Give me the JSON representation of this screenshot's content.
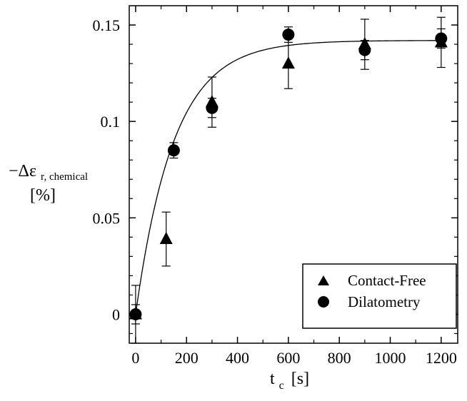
{
  "chart_data": {
    "type": "scatter",
    "xlabel": {
      "main": "t",
      "sub": "c",
      "unit": "[s]"
    },
    "ylabel": {
      "prefix": "−Δε",
      "sub": "r, chemical",
      "unit": "[%]"
    },
    "xlim": [
      -25,
      1265
    ],
    "ylim": [
      -0.015,
      0.16
    ],
    "xticks": [
      0,
      200,
      400,
      600,
      800,
      1000,
      1200
    ],
    "yticks": [
      0,
      0.05,
      0.1,
      0.15
    ],
    "xtick_labels": [
      "0",
      "200",
      "400",
      "600",
      "800",
      "1000",
      "1200"
    ],
    "ytick_labels": [
      "0",
      "0.05",
      "0.1",
      "0.15"
    ],
    "legend": {
      "position": "bottom-right"
    },
    "series": [
      {
        "name": "Contact-Free",
        "marker": "triangle",
        "points": [
          {
            "x": 0,
            "y": 0.0,
            "err": 0.015
          },
          {
            "x": 120,
            "y": 0.039,
            "err": 0.014
          },
          {
            "x": 300,
            "y": 0.11,
            "err": 0.013
          },
          {
            "x": 600,
            "y": 0.13,
            "err": 0.013
          },
          {
            "x": 900,
            "y": 0.14,
            "err": 0.013
          },
          {
            "x": 1200,
            "y": 0.141,
            "err": 0.013
          }
        ]
      },
      {
        "name": "Dilatometry",
        "marker": "circle",
        "points": [
          {
            "x": 0,
            "y": 0.0,
            "err": 0.005
          },
          {
            "x": 150,
            "y": 0.085,
            "err": 0.004
          },
          {
            "x": 300,
            "y": 0.107,
            "err": 0.005
          },
          {
            "x": 600,
            "y": 0.145,
            "err": 0.004
          },
          {
            "x": 900,
            "y": 0.137,
            "err": 0.005
          },
          {
            "x": 1200,
            "y": 0.143,
            "err": 0.005
          }
        ]
      }
    ],
    "fit_curve": {
      "type": "exponential",
      "plateau": 0.142,
      "tau": 150
    }
  }
}
